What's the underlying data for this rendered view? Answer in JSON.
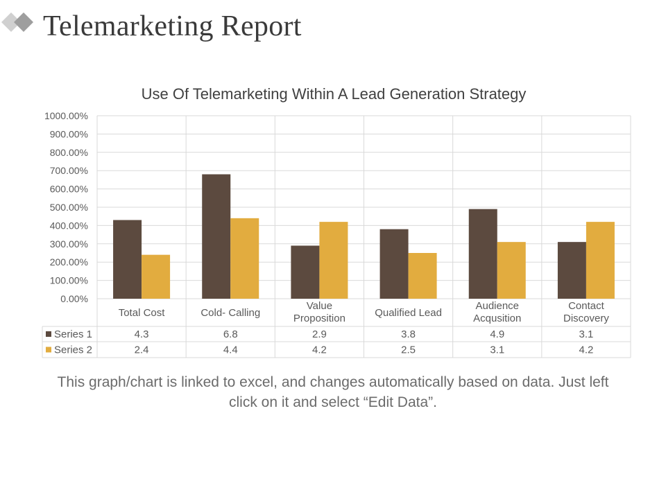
{
  "slide": {
    "title": "Telemarketing Report",
    "caption": "This graph/chart is linked to excel, and changes automatically based on data. Just left click on it and select “Edit Data”."
  },
  "colors": {
    "series1": "#5c4a3f",
    "series2": "#e2ac3f",
    "grid": "#d9d9d9",
    "axis_text": "#595959",
    "title_text": "#404040",
    "logo_light": "#d0d0d0",
    "logo_dark": "#9e9e9e"
  },
  "chart_data": {
    "type": "bar",
    "title": "Use Of Telemarketing Within A Lead Generation Strategy",
    "categories": [
      [
        "Total Cost"
      ],
      [
        "Cold- Calling"
      ],
      [
        "Value",
        "Proposition"
      ],
      [
        "Qualified Lead"
      ],
      [
        "Audience",
        "Acqusition"
      ],
      [
        "Contact",
        "Discovery"
      ]
    ],
    "series": [
      {
        "name": "Series 1",
        "values": [
          4.3,
          6.8,
          2.9,
          3.8,
          4.9,
          3.1
        ]
      },
      {
        "name": "Series 2",
        "values": [
          2.4,
          4.4,
          4.2,
          2.5,
          3.1,
          4.2
        ]
      }
    ],
    "ylim": [
      0,
      10
    ],
    "ytick_step": 1,
    "ytick_labels": [
      "0.00%",
      "100.00%",
      "200.00%",
      "300.00%",
      "400.00%",
      "500.00%",
      "600.00%",
      "700.00%",
      "800.00%",
      "900.00%",
      "1000.00%"
    ],
    "data_table": true,
    "grid": true,
    "legend": "data-table"
  }
}
